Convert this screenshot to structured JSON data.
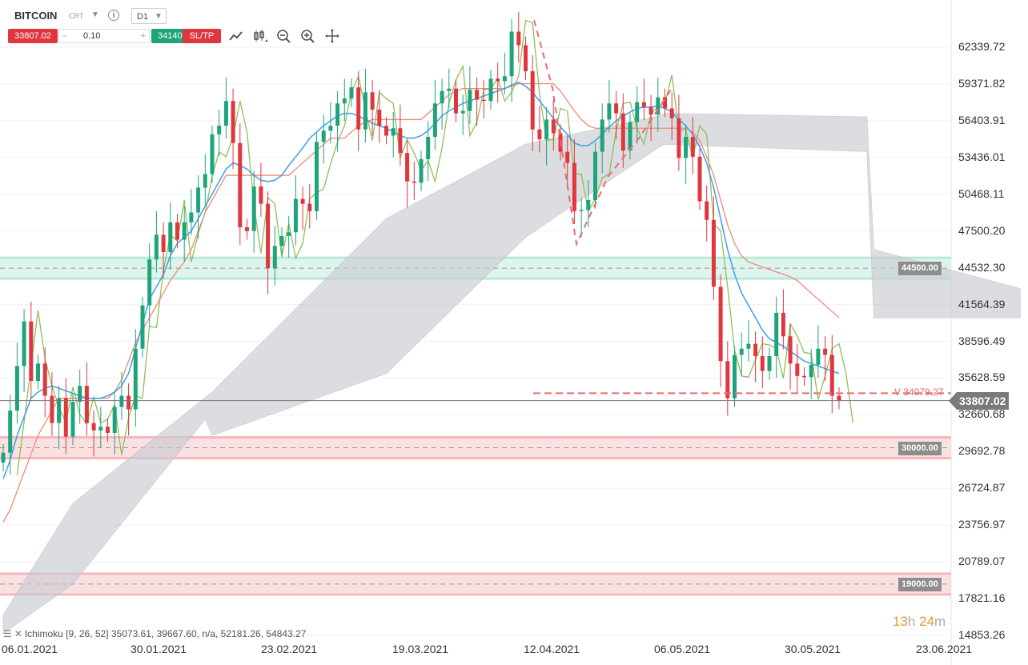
{
  "header": {
    "symbol": "BITCOIN",
    "symbol_type": "CRT",
    "timeframe": "D1",
    "sell_price": "33807.02",
    "quantity": "0.10",
    "buy_price": "34140.49",
    "sltp_label": "SL/TP",
    "minus_label": "–",
    "plus_label": "+"
  },
  "toolbar_icons": [
    "line-chart-icon",
    "candlestick-icon",
    "zoom-out-icon",
    "zoom-in-icon",
    "move-icon"
  ],
  "colors": {
    "bull": "#1ea37a",
    "bear": "#e0373e",
    "tenkan": "#4aa3e8",
    "kijun": "#f08a78",
    "chikou": "#8fbf5a",
    "cloud": "#c9ccd1",
    "support_band": "#d8f3ea",
    "resistance_band": "#fadadc"
  },
  "chart_data": {
    "type": "candlestick",
    "symbol": "BITCOIN",
    "timeframe": "D1",
    "y_range": [
      14853.26,
      63200
    ],
    "y_ticks": [
      "62339.72",
      "59371.82",
      "56403.91",
      "53436.01",
      "50468.11",
      "47500.20",
      "44532.30",
      "41564.39",
      "38596.49",
      "35628.59",
      "32660.68",
      "29692.78",
      "26724.87",
      "23756.97",
      "20789.07",
      "17821.16",
      "14853.26"
    ],
    "x_ticks": [
      "06.01.2021",
      "30.01.2021",
      "23.02.2021",
      "19.03.2021",
      "12.04.2021",
      "06.05.2021",
      "30.05.2021",
      "23.06.2021"
    ],
    "current_price": "33807.02",
    "pending_level": {
      "label": "V 34079.27",
      "value": 34079.27
    },
    "horizontal_levels": [
      {
        "label": "44500.00",
        "value": 44500,
        "kind": "support"
      },
      {
        "label": "30000.00",
        "value": 30000,
        "kind": "resistance"
      },
      {
        "label": "19000.00",
        "value": 19000,
        "kind": "resistance"
      }
    ],
    "close_series": [
      29600,
      33000,
      36600,
      40200,
      35400,
      36800,
      34200,
      32000,
      34000,
      30900,
      33700,
      35000,
      32000,
      31400,
      31700,
      31200,
      33300,
      34200,
      33100,
      38000,
      41500,
      45200,
      47200,
      45800,
      48200,
      46800,
      48200,
      49000,
      51000,
      52100,
      55300,
      56000,
      58000,
      54600,
      47800,
      47500,
      51100,
      49700,
      44500,
      46300,
      47100,
      47400,
      50100,
      49700,
      49100,
      54700,
      55600,
      56000,
      57800,
      58200,
      59100,
      55700,
      58700,
      57300,
      56000,
      55200,
      55800,
      53800,
      51500,
      51400,
      53300,
      55100,
      57800,
      58800,
      59000,
      57000,
      57200,
      58900,
      58100,
      58000,
      59800,
      59600,
      60000,
      63600,
      62500,
      60400,
      55700,
      54900,
      56500,
      55400,
      53900,
      53000,
      49100,
      49200,
      50000,
      53900,
      56500,
      57800,
      57000,
      54000,
      56300,
      57900,
      57500,
      56900,
      58300,
      57400,
      56600,
      53400,
      55100,
      53500,
      49900,
      48400,
      43000,
      37000,
      34000,
      37500,
      38000,
      38400,
      37400,
      36200,
      37400,
      40900,
      39000,
      36800,
      35800,
      35700,
      36700,
      38000,
      37500,
      34200,
      33807
    ],
    "tenkan_series": [
      27500,
      29000,
      31000,
      32500,
      34000,
      34500,
      34800,
      35000,
      34800,
      34600,
      34400,
      34200,
      34000,
      34000,
      34000,
      34200,
      34500,
      35000,
      36000,
      38000,
      40000,
      42000,
      43000,
      44000,
      45500,
      46500,
      47000,
      47500,
      48500,
      49500,
      50500,
      51500,
      52500,
      53000,
      52800,
      52500,
      52000,
      51600,
      51500,
      51600,
      52000,
      52800,
      53500,
      54200,
      55000,
      55500,
      56000,
      56400,
      56800,
      57000,
      57000,
      56800,
      56500,
      56200,
      56000,
      55800,
      55500,
      55200,
      55000,
      55000,
      55200,
      55600,
      56200,
      56800,
      57200,
      57500,
      57800,
      58000,
      58200,
      58400,
      58600,
      58800,
      59000,
      59300,
      59500,
      59200,
      58700,
      58000,
      57300,
      56600,
      55900,
      55300,
      54600,
      54400,
      54400,
      54800,
      55300,
      55900,
      56400,
      56800,
      57100,
      57400,
      57500,
      57500,
      57600,
      57400,
      57100,
      56500,
      56000,
      55300,
      54300,
      53000,
      51000,
      48500,
      46000,
      44000,
      42500,
      41500,
      40500,
      39500,
      38800,
      38500,
      38200,
      37800,
      37400,
      37000,
      36800,
      36600,
      36400,
      36200,
      36000
    ],
    "kijun_series": [
      24000,
      25000,
      26500,
      28000,
      29500,
      31000,
      32000,
      33000,
      34000,
      34000,
      34000,
      34000,
      34000,
      34000,
      34000,
      34000,
      34500,
      35500,
      37000,
      38500,
      39500,
      40500,
      41500,
      42500,
      43500,
      44300,
      45000,
      46000,
      47500,
      49000,
      50000,
      51000,
      52000,
      52000,
      52000,
      52000,
      52000,
      52000,
      52000,
      52000,
      52000,
      52000,
      52500,
      53000,
      53500,
      54000,
      54500,
      55000,
      55000,
      55000,
      55500,
      56000,
      56300,
      56500,
      56500,
      56500,
      56500,
      56500,
      56500,
      56500,
      56500,
      57000,
      57500,
      58000,
      58500,
      58800,
      59000,
      59000,
      59000,
      59000,
      59000,
      59000,
      59000,
      59200,
      59400,
      59400,
      59400,
      59400,
      59400,
      59400,
      58800,
      58000,
      57200,
      56500,
      56000,
      55800,
      55800,
      55800,
      55800,
      55800,
      55800,
      55800,
      55800,
      55800,
      55800,
      55800,
      55800,
      55800,
      55800,
      55500,
      54800,
      53500,
      52000,
      50000,
      48000,
      46500,
      45500,
      45000,
      44800,
      44600,
      44400,
      44200,
      44000,
      43800,
      43500,
      43000,
      42500,
      42000,
      41500,
      41000,
      40500
    ]
  },
  "timer": {
    "hours": "13",
    "h": "h",
    "minutes": "24",
    "m": "m"
  },
  "indicator_text": "Ichimoku [9, 26, 52] 35073.61, 39667.60, n/a, 52181.26, 54843.27"
}
